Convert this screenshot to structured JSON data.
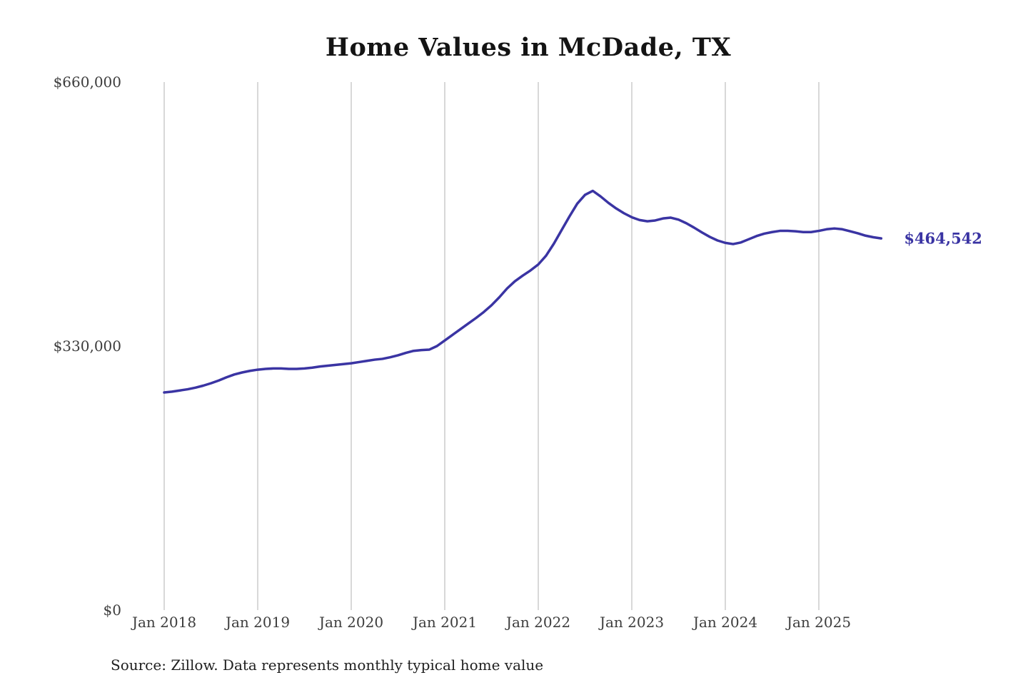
{
  "chart": {
    "title": "Home Values in McDade, TX",
    "end_label": "$464,542",
    "source": "Source: Zillow. Data represents monthly typical home value",
    "line_color": "#3a34a3",
    "grid_color": "#cccccc"
  },
  "chart_data": {
    "type": "line",
    "title": "Home Values in McDade, TX",
    "ylabel": "",
    "xlabel": "",
    "ylim": [
      0,
      660000
    ],
    "grid": "vertical-only",
    "legend": "none",
    "end_value": 464542,
    "yticks": [
      {
        "label": "$660,000",
        "value": 660000
      },
      {
        "label": "$330,000",
        "value": 330000
      },
      {
        "label": "$0",
        "value": 0
      }
    ],
    "xticks": [
      {
        "label": "Jan 2018",
        "month_index": 0
      },
      {
        "label": "Jan 2019",
        "month_index": 12
      },
      {
        "label": "Jan 2020",
        "month_index": 24
      },
      {
        "label": "Jan 2021",
        "month_index": 36
      },
      {
        "label": "Jan 2022",
        "month_index": 48
      },
      {
        "label": "Jan 2023",
        "month_index": 60
      },
      {
        "label": "Jan 2024",
        "month_index": 72
      },
      {
        "label": "Jan 2025",
        "month_index": 84
      }
    ],
    "x": [
      "2018-01",
      "2018-02",
      "2018-03",
      "2018-04",
      "2018-05",
      "2018-06",
      "2018-07",
      "2018-08",
      "2018-09",
      "2018-10",
      "2018-11",
      "2018-12",
      "2019-01",
      "2019-02",
      "2019-03",
      "2019-04",
      "2019-05",
      "2019-06",
      "2019-07",
      "2019-08",
      "2019-09",
      "2019-10",
      "2019-11",
      "2019-12",
      "2020-01",
      "2020-02",
      "2020-03",
      "2020-04",
      "2020-05",
      "2020-06",
      "2020-07",
      "2020-08",
      "2020-09",
      "2020-10",
      "2020-11",
      "2020-12",
      "2021-01",
      "2021-02",
      "2021-03",
      "2021-04",
      "2021-05",
      "2021-06",
      "2021-07",
      "2021-08",
      "2021-09",
      "2021-10",
      "2021-11",
      "2021-12",
      "2022-01",
      "2022-02",
      "2022-03",
      "2022-04",
      "2022-05",
      "2022-06",
      "2022-07",
      "2022-08",
      "2022-09",
      "2022-10",
      "2022-11",
      "2022-12",
      "2023-01",
      "2023-02",
      "2023-03",
      "2023-04",
      "2023-05",
      "2023-06",
      "2023-07",
      "2023-08",
      "2023-09",
      "2023-10",
      "2023-11",
      "2023-12",
      "2024-01",
      "2024-02",
      "2024-03",
      "2024-04",
      "2024-05",
      "2024-06",
      "2024-07",
      "2024-08",
      "2024-09",
      "2024-10",
      "2024-11",
      "2024-12",
      "2025-01",
      "2025-02",
      "2025-03",
      "2025-04",
      "2025-05",
      "2025-06",
      "2025-07",
      "2025-08",
      "2025-09"
    ],
    "series": [
      {
        "name": "Monthly typical home value",
        "values": [
          272000,
          273000,
          274500,
          276000,
          278000,
          280500,
          283500,
          287000,
          291000,
          294500,
          297000,
          299000,
          300500,
          301500,
          302000,
          302000,
          301500,
          301500,
          302000,
          303000,
          304500,
          305500,
          306500,
          307500,
          308500,
          310000,
          311500,
          313000,
          314000,
          316000,
          318500,
          321500,
          324000,
          325000,
          325500,
          330000,
          337000,
          344000,
          351000,
          358000,
          365000,
          372500,
          381000,
          391000,
          402000,
          411000,
          418000,
          424500,
          432000,
          443000,
          458000,
          475000,
          492000,
          508000,
          519000,
          524000,
          517000,
          509000,
          502000,
          496000,
          491000,
          487500,
          486000,
          487000,
          489500,
          490500,
          488000,
          483500,
          478000,
          472000,
          466500,
          462000,
          459000,
          457500,
          459500,
          463500,
          467500,
          470500,
          472500,
          474000,
          474000,
          473500,
          472500,
          472500,
          474000,
          476000,
          477000,
          476000,
          473500,
          471000,
          468000,
          466000,
          464542
        ]
      }
    ]
  }
}
